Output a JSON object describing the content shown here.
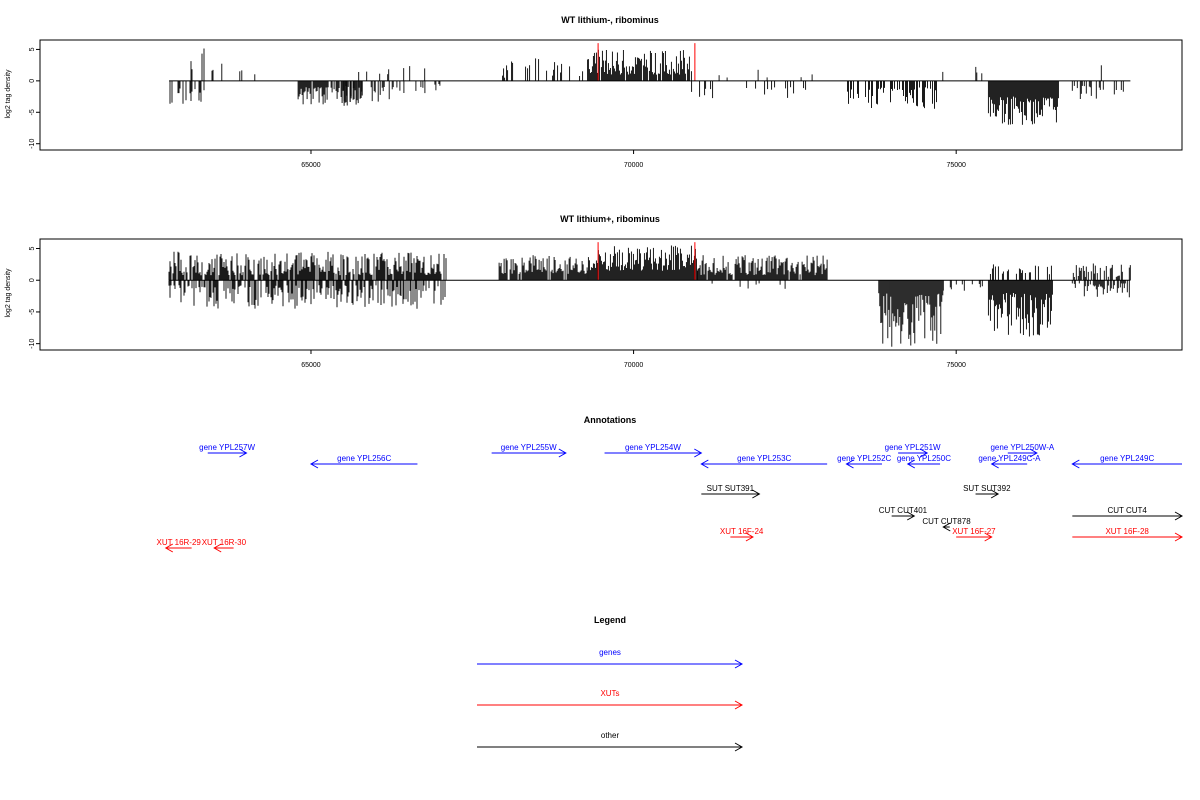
{
  "chart_data": [
    {
      "type": "bar",
      "title": "WT lithium-, ribominus",
      "ylabel": "log2 tag density",
      "xlim": [
        60800,
        78500
      ],
      "ylim": [
        -11,
        6.5
      ],
      "xticks": [
        65000,
        70000,
        75000
      ],
      "yticks": [
        5,
        0,
        -5,
        -10
      ],
      "bar_color": "#000000",
      "highlight_color": "#ff0000",
      "baseline_range": [
        62800,
        77700
      ],
      "segments": [
        {
          "range": [
            62800,
            63400
          ],
          "sign": -1,
          "density": 0.4,
          "min": 1.2,
          "max": 3.8,
          "seed": 1
        },
        {
          "range": [
            62800,
            63600
          ],
          "sign": 1,
          "density": 0.08,
          "min": 1.5,
          "max": 6.2,
          "seed": 2
        },
        {
          "range": [
            63400,
            64300
          ],
          "sign": 1,
          "density": 0.05,
          "min": 1.0,
          "max": 3.0,
          "seed": 3
        },
        {
          "range": [
            64800,
            65800
          ],
          "sign": -1,
          "density": 0.75,
          "min": 1.0,
          "max": 4.0,
          "seed": 4
        },
        {
          "range": [
            65500,
            66300
          ],
          "sign": -1,
          "density": 0.55,
          "min": 0.8,
          "max": 4.0,
          "seed": 5
        },
        {
          "range": [
            66300,
            67000
          ],
          "sign": -1,
          "density": 0.2,
          "min": 0.5,
          "max": 2.0,
          "seed": 6
        },
        {
          "range": [
            64500,
            67500
          ],
          "sign": 1,
          "density": 0.04,
          "min": 1.0,
          "max": 3.0,
          "seed": 7
        },
        {
          "range": [
            67800,
            69300
          ],
          "sign": 1,
          "density": 0.3,
          "min": 0.5,
          "max": 4.0,
          "seed": 8
        },
        {
          "range": [
            69300,
            70900
          ],
          "sign": 1,
          "density": 0.95,
          "min": 1.0,
          "max": 5.0,
          "seed": 9
        },
        {
          "range": [
            70900,
            72700
          ],
          "sign": -1,
          "density": 0.12,
          "min": 1.0,
          "max": 3.0,
          "seed": 10
        },
        {
          "range": [
            71000,
            73000
          ],
          "sign": 1,
          "density": 0.05,
          "min": 0.5,
          "max": 2.5,
          "seed": 11
        },
        {
          "range": [
            73300,
            74700
          ],
          "sign": -1,
          "density": 0.55,
          "min": 1.0,
          "max": 4.5,
          "seed": 12
        },
        {
          "range": [
            74700,
            75400
          ],
          "sign": 1,
          "density": 0.06,
          "min": 1.0,
          "max": 2.5,
          "seed": 13
        },
        {
          "range": [
            75500,
            76600
          ],
          "sign": -1,
          "density": 1.0,
          "min": 2.5,
          "max": 7.0,
          "seed": 14
        },
        {
          "range": [
            76800,
            77600
          ],
          "sign": -1,
          "density": 0.25,
          "min": 0.8,
          "max": 3.0,
          "seed": 15
        },
        {
          "range": [
            76800,
            77600
          ],
          "sign": 1,
          "density": 0.06,
          "min": 1.0,
          "max": 2.5,
          "seed": 16
        }
      ],
      "highlights": [
        {
          "x": 69450,
          "y": 6
        },
        {
          "x": 70950,
          "y": 6
        }
      ]
    },
    {
      "type": "bar",
      "title": "WT lithium+, ribominus",
      "ylabel": "log2 tag density",
      "xlim": [
        60800,
        78500
      ],
      "ylim": [
        -11,
        6.5
      ],
      "xticks": [
        65000,
        70000,
        75000
      ],
      "yticks": [
        5,
        0,
        -5,
        -10
      ],
      "bar_color": "#000000",
      "highlight_color": "#ff0000",
      "baseline_range": [
        62800,
        77700
      ],
      "segments": [
        {
          "range": [
            62800,
            67100
          ],
          "sign": 1,
          "density": 0.85,
          "min": 0.8,
          "max": 4.5,
          "seed": 21
        },
        {
          "range": [
            62800,
            67100
          ],
          "sign": -1,
          "density": 0.6,
          "min": 0.8,
          "max": 4.5,
          "seed": 22
        },
        {
          "range": [
            67900,
            69300
          ],
          "sign": 1,
          "density": 0.9,
          "min": 1.0,
          "max": 4.0,
          "seed": 23
        },
        {
          "range": [
            69300,
            71000
          ],
          "sign": 1,
          "density": 1.0,
          "min": 1.5,
          "max": 5.5,
          "seed": 24
        },
        {
          "range": [
            71000,
            73000
          ],
          "sign": 1,
          "density": 0.95,
          "min": 0.8,
          "max": 4.0,
          "seed": 25
        },
        {
          "range": [
            71000,
            73000
          ],
          "sign": -1,
          "density": 0.05,
          "min": 0.5,
          "max": 1.5,
          "seed": 26
        },
        {
          "range": [
            73800,
            74800
          ],
          "sign": -1,
          "density": 1.0,
          "min": 2.0,
          "max": 10.5,
          "seed": 27
        },
        {
          "range": [
            74800,
            75500
          ],
          "sign": -1,
          "density": 0.15,
          "min": 0.5,
          "max": 2.0,
          "seed": 28
        },
        {
          "range": [
            75500,
            76500
          ],
          "sign": -1,
          "density": 1.0,
          "min": 2.0,
          "max": 9.0,
          "seed": 29
        },
        {
          "range": [
            75500,
            76500
          ],
          "sign": 1,
          "density": 0.4,
          "min": 0.8,
          "max": 2.5,
          "seed": 30
        },
        {
          "range": [
            76800,
            77700
          ],
          "sign": 1,
          "density": 0.6,
          "min": 0.5,
          "max": 2.8,
          "seed": 31
        },
        {
          "range": [
            76800,
            77700
          ],
          "sign": -1,
          "density": 0.6,
          "min": 0.5,
          "max": 2.8,
          "seed": 32
        }
      ],
      "highlights": [
        {
          "x": 69450,
          "y": 6
        },
        {
          "x": 70950,
          "y": 6
        }
      ]
    }
  ],
  "annotations": {
    "title": "Annotations",
    "xlim": [
      60800,
      78500
    ],
    "colors": {
      "gene": "#0000ff",
      "xut": "#ff0000",
      "other": "#000000"
    },
    "features": [
      {
        "label": "gene YPL257W",
        "type": "gene",
        "strand": "+",
        "start": 63400,
        "end": 64000,
        "row": 0
      },
      {
        "label": "gene YPL256C",
        "type": "gene",
        "strand": "-",
        "start": 65000,
        "end": 66650,
        "row": 1
      },
      {
        "label": "gene YPL255W",
        "type": "gene",
        "strand": "+",
        "start": 67800,
        "end": 68950,
        "row": 0
      },
      {
        "label": "gene YPL254W",
        "type": "gene",
        "strand": "+",
        "start": 69550,
        "end": 71050,
        "row": 0
      },
      {
        "label": "gene YPL253C",
        "type": "gene",
        "strand": "-",
        "start": 71050,
        "end": 73000,
        "row": 1
      },
      {
        "label": "gene YPL251W",
        "type": "gene",
        "strand": "+",
        "start": 74100,
        "end": 74550,
        "row": 0
      },
      {
        "label": "gene YPL252C",
        "type": "gene",
        "strand": "-",
        "start": 73300,
        "end": 73850,
        "row": 1
      },
      {
        "label": "gene YPL250C",
        "type": "gene",
        "strand": "-",
        "start": 74250,
        "end": 74750,
        "row": 1
      },
      {
        "label": "gene YPL250W-A",
        "type": "gene",
        "strand": "+",
        "start": 75800,
        "end": 76250,
        "row": 0
      },
      {
        "label": "gene YPL249C-A",
        "type": "gene",
        "strand": "-",
        "start": 75550,
        "end": 76100,
        "row": 1
      },
      {
        "label": "gene YPL249C",
        "type": "gene",
        "strand": "-",
        "start": 76800,
        "end": 78500,
        "row": 1
      },
      {
        "label": "SUT SUT391",
        "type": "other",
        "strand": "+",
        "start": 71050,
        "end": 71950,
        "row": 3
      },
      {
        "label": "SUT SUT392",
        "type": "other",
        "strand": "+",
        "start": 75300,
        "end": 75650,
        "row": 3
      },
      {
        "label": "CUT CUT401",
        "type": "other",
        "strand": "+",
        "start": 74000,
        "end": 74350,
        "row": 5
      },
      {
        "label": "CUT CUT878",
        "type": "other",
        "strand": "-",
        "start": 74800,
        "end": 74900,
        "row": 6
      },
      {
        "label": "CUT CUT4",
        "type": "other",
        "strand": "+",
        "start": 76800,
        "end": 78500,
        "row": 5
      },
      {
        "label": "XUT 16F-24",
        "type": "xut",
        "strand": "+",
        "start": 71500,
        "end": 71850,
        "row": 7
      },
      {
        "label": "XUT 16F-27",
        "type": "xut",
        "strand": "+",
        "start": 75000,
        "end": 75550,
        "row": 7
      },
      {
        "label": "XUT 16F-28",
        "type": "xut",
        "strand": "+",
        "start": 76800,
        "end": 78500,
        "row": 7
      },
      {
        "label": "XUT 16R-29",
        "type": "xut",
        "strand": "-",
        "start": 62750,
        "end": 63150,
        "row": 8
      },
      {
        "label": "XUT 16R-30",
        "type": "xut",
        "strand": "-",
        "start": 63500,
        "end": 63800,
        "row": 8
      }
    ]
  },
  "legend": {
    "title": "Legend",
    "entries": [
      {
        "label": "genes",
        "color": "#0000ff"
      },
      {
        "label": "XUTs",
        "color": "#ff0000"
      },
      {
        "label": "other",
        "color": "#000000"
      }
    ]
  }
}
